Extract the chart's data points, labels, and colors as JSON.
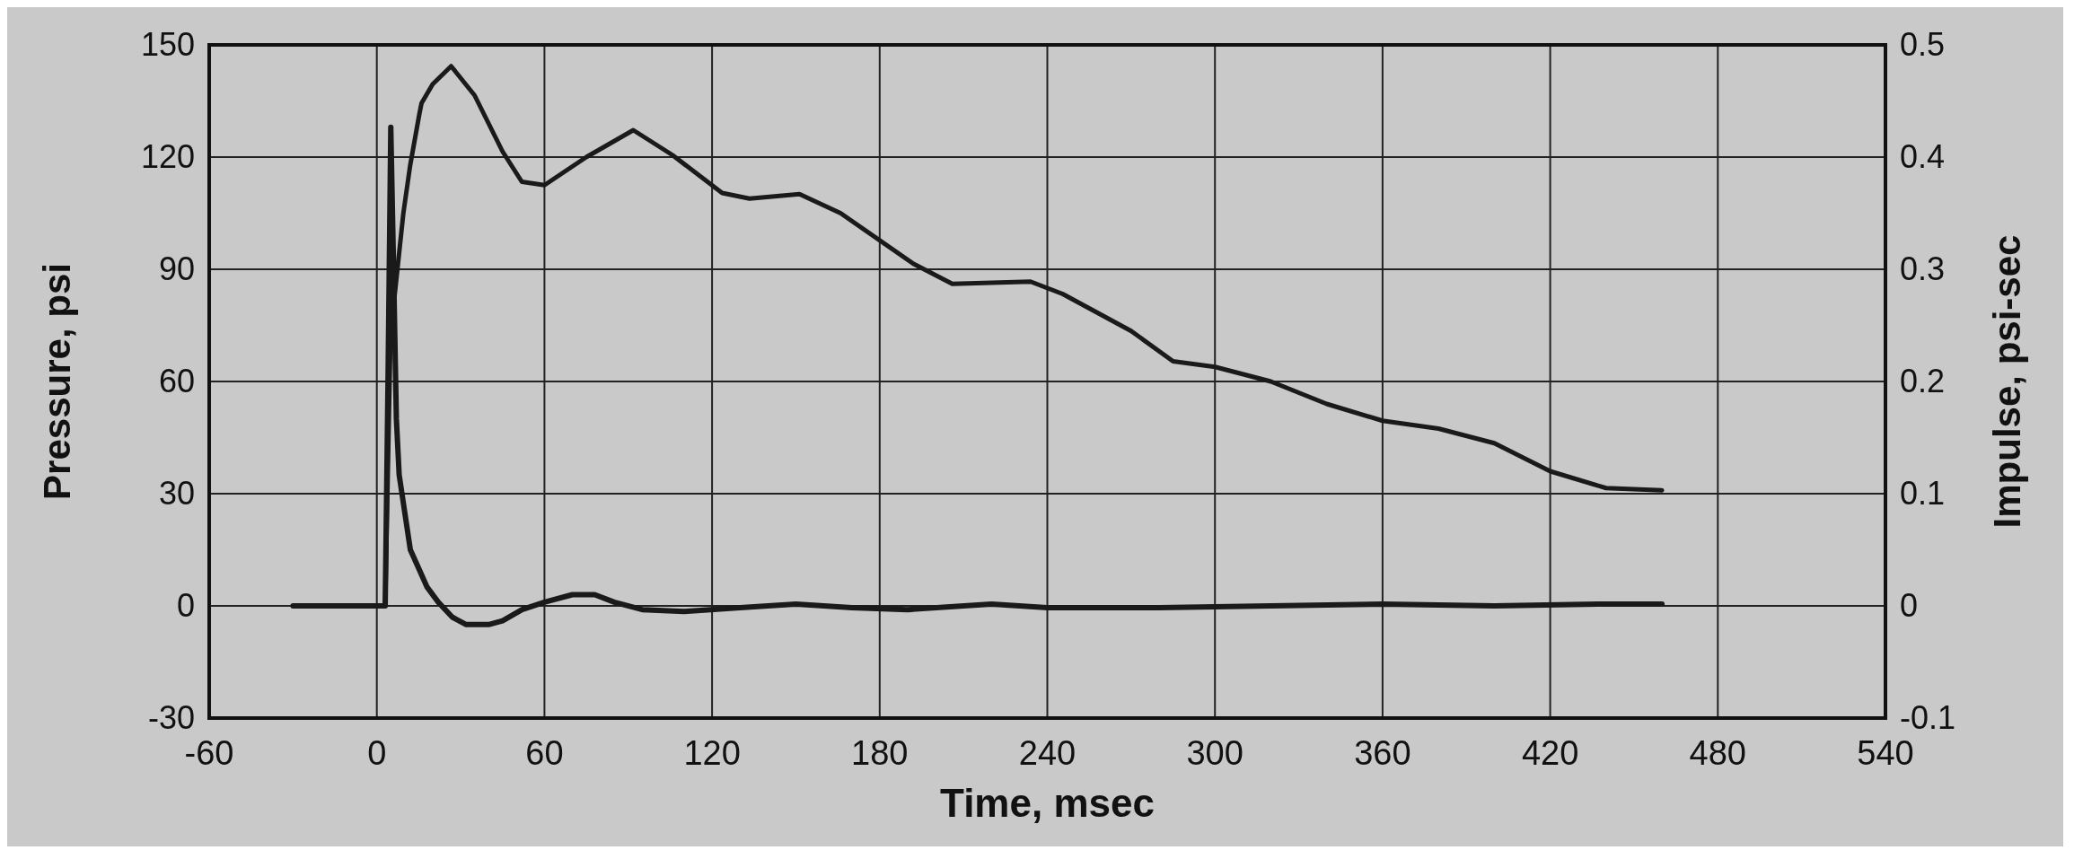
{
  "chart_data": {
    "type": "line",
    "xlabel": "Time, msec",
    "ylabel": "Pressure, psi",
    "y2label": "Impulse, psi-sec",
    "xlim": [
      -60,
      540
    ],
    "xticks": [
      -60,
      0,
      60,
      120,
      180,
      240,
      300,
      360,
      420,
      480,
      540
    ],
    "ylim": [
      -30,
      150
    ],
    "yticks": [
      -30,
      0,
      30,
      60,
      90,
      120,
      150
    ],
    "y2lim": [
      -0.1,
      0.5
    ],
    "y2ticks": [
      -0.1,
      0,
      0.1,
      0.2,
      0.3,
      0.4,
      0.5
    ],
    "grid": true,
    "marker": "none",
    "line_style": "solid",
    "series": [
      {
        "color": "#1a1a1a",
        "x": [
          -30,
          -10,
          0,
          3,
          4,
          5,
          6,
          7,
          8,
          10,
          12,
          15,
          18,
          22,
          27,
          32,
          40,
          45,
          52,
          60,
          70,
          78,
          85,
          95,
          110,
          130,
          150,
          170,
          190,
          220,
          240,
          280,
          320,
          360,
          400,
          440,
          460
        ],
        "values": [
          0,
          0,
          0,
          0,
          60,
          128,
          90,
          50,
          35,
          25,
          15,
          10,
          5,
          1,
          -3,
          -5,
          -5,
          -4,
          -1,
          1,
          3,
          3,
          1,
          -1,
          -1.5,
          -0.5,
          0.5,
          -0.5,
          -1,
          0.5,
          -0.5,
          -0.5,
          0,
          0.5,
          0,
          0.5,
          0.5
        ]
      },
      {
        "color": "#1a1a1a",
        "axis": "y2",
        "x": [
          3,
          4.9,
          9.5,
          11.9,
          15.2,
          16,
          20,
          26.6,
          35,
          45,
          51.9,
          60,
          75,
          91.8,
          105.7,
          123.6,
          133.4,
          151.3,
          166,
          192,
          206,
          234,
          245.5,
          270,
          285,
          300,
          320,
          340,
          360,
          380,
          400,
          420,
          440,
          460
        ],
        "values": [
          0,
          0.242,
          0.35,
          0.392,
          0.438,
          0.448,
          0.465,
          0.481,
          0.455,
          0.405,
          0.378,
          0.375,
          0.4,
          0.424,
          0.402,
          0.368,
          0.363,
          0.367,
          0.35,
          0.305,
          0.287,
          0.289,
          0.278,
          0.245,
          0.218,
          0.213,
          0.2,
          0.18,
          0.165,
          0.158,
          0.145,
          0.12,
          0.105,
          0.103
        ]
      }
    ]
  }
}
